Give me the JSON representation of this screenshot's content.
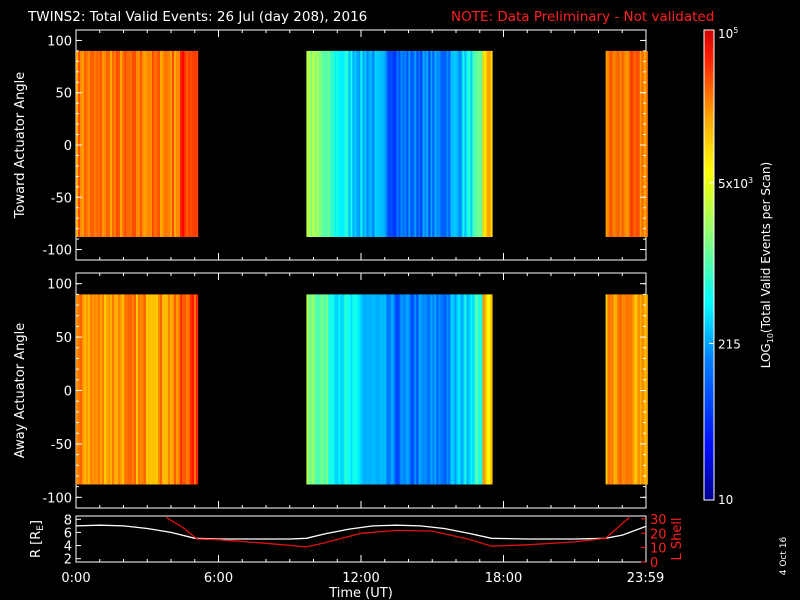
{
  "header": {
    "title": "TWINS2: Total Valid Events: 26 Jul (day 208), 2016",
    "note": "NOTE: Data Preliminary - Not validated",
    "note_color": "#ff2020"
  },
  "footer": {
    "date_stamp": "4 Oct 16"
  },
  "chart_data": [
    {
      "type": "heatmap",
      "name": "toward",
      "ylabel": "Toward Actuator Angle",
      "ylim": [
        -110,
        110
      ],
      "yticks": [
        "100",
        "50",
        "0",
        "-50",
        "-100"
      ],
      "ytick_values": [
        100,
        50,
        0,
        -50,
        -100
      ],
      "angle_range": [
        -88,
        90
      ],
      "xlim_hours": [
        0,
        24
      ],
      "data_blocks": [
        {
          "start_h": 0.0,
          "end_h": 5.1,
          "level": "high",
          "approx_log10_events": [
            3.6,
            4.4
          ]
        },
        {
          "start_h": 9.7,
          "end_h": 17.5,
          "level": "mixed",
          "approx_log10_events": [
            1.6,
            3.9
          ]
        },
        {
          "start_h": 22.3,
          "end_h": 24.0,
          "level": "high",
          "approx_log10_events": [
            3.6,
            4.4
          ]
        }
      ]
    },
    {
      "type": "heatmap",
      "name": "away",
      "ylabel": "Away Actuator Angle",
      "ylim": [
        -110,
        110
      ],
      "yticks": [
        "100",
        "50",
        "0",
        "-50",
        "-100"
      ],
      "ytick_values": [
        100,
        50,
        0,
        -50,
        -100
      ],
      "angle_range": [
        -88,
        90
      ],
      "xlim_hours": [
        0,
        24
      ],
      "data_blocks": [
        {
          "start_h": 0.0,
          "end_h": 5.1,
          "level": "high",
          "approx_log10_events": [
            3.5,
            4.3
          ]
        },
        {
          "start_h": 9.7,
          "end_h": 17.5,
          "level": "mixed",
          "approx_log10_events": [
            1.6,
            3.8
          ]
        },
        {
          "start_h": 22.3,
          "end_h": 24.0,
          "level": "high",
          "approx_log10_events": [
            3.5,
            4.3
          ]
        }
      ]
    },
    {
      "type": "line",
      "name": "orbit",
      "ylabel_left": "R [R",
      "ylabel_left_sub": "E",
      "ylabel_left_close": "]",
      "ylabel_right": "L Shell",
      "ylim_left": [
        1.5,
        8.5
      ],
      "ylim_right": [
        0,
        32
      ],
      "yticks_left": [
        "8",
        "6",
        "4",
        "2"
      ],
      "yticks_left_values": [
        8,
        6,
        4,
        2
      ],
      "yticks_right": [
        "30",
        "20",
        "10",
        "0"
      ],
      "yticks_right_values": [
        30,
        20,
        10,
        0
      ],
      "xlabel": "Time (UT)",
      "xticks": [
        "0:00",
        "6:00",
        "12:00",
        "18:00",
        "23:59"
      ],
      "xtick_values": [
        0,
        6,
        12,
        18,
        23.98
      ],
      "series": [
        {
          "name": "R",
          "axis": "left",
          "color": "#ffffff",
          "x": [
            0,
            1,
            2,
            3,
            4,
            5,
            6,
            7,
            8,
            9,
            9.7,
            10.5,
            11.5,
            12.5,
            13.5,
            14.5,
            15.5,
            16.5,
            17.5,
            19,
            21,
            22.3,
            23,
            23.98
          ],
          "y": [
            7.0,
            7.1,
            7.0,
            6.6,
            6.0,
            5.1,
            5.0,
            5.0,
            5.0,
            5.0,
            5.1,
            5.8,
            6.5,
            7.0,
            7.1,
            7.0,
            6.6,
            5.9,
            5.1,
            5.0,
            5.0,
            5.1,
            5.6,
            6.9
          ]
        },
        {
          "name": "L Shell",
          "axis": "right",
          "color": "#e01010",
          "x": [
            3.8,
            4.5,
            5.1,
            6,
            8,
            9.7,
            10.5,
            12,
            13.5,
            15,
            16.5,
            17.5,
            19,
            21,
            22.3,
            23.3
          ],
          "y": [
            31,
            24,
            16,
            15.5,
            13,
            10.5,
            13.5,
            20,
            22,
            21.5,
            16,
            11,
            12,
            14,
            16.5,
            31
          ]
        }
      ]
    },
    {
      "type": "heatmap",
      "name": "colorbar",
      "label": "LOG10(Total Valid Events per Scan)",
      "label_parts": [
        "LOG",
        "10",
        "(Total Valid Events per Scan)"
      ],
      "scale": "log",
      "range": [
        10,
        100000
      ],
      "ticks": [
        {
          "value": 100000,
          "base": "10",
          "exp": "5"
        },
        {
          "value": 5000,
          "base": "5x10",
          "exp": "3"
        },
        {
          "value": 215,
          "base": "215",
          "exp": ""
        },
        {
          "value": 10,
          "base": "10",
          "exp": ""
        }
      ],
      "colormap": [
        "#00008f",
        "#0010ff",
        "#0080ff",
        "#00ffff",
        "#80ff80",
        "#ffff00",
        "#ff8000",
        "#ff0000",
        "#b00000"
      ]
    }
  ]
}
